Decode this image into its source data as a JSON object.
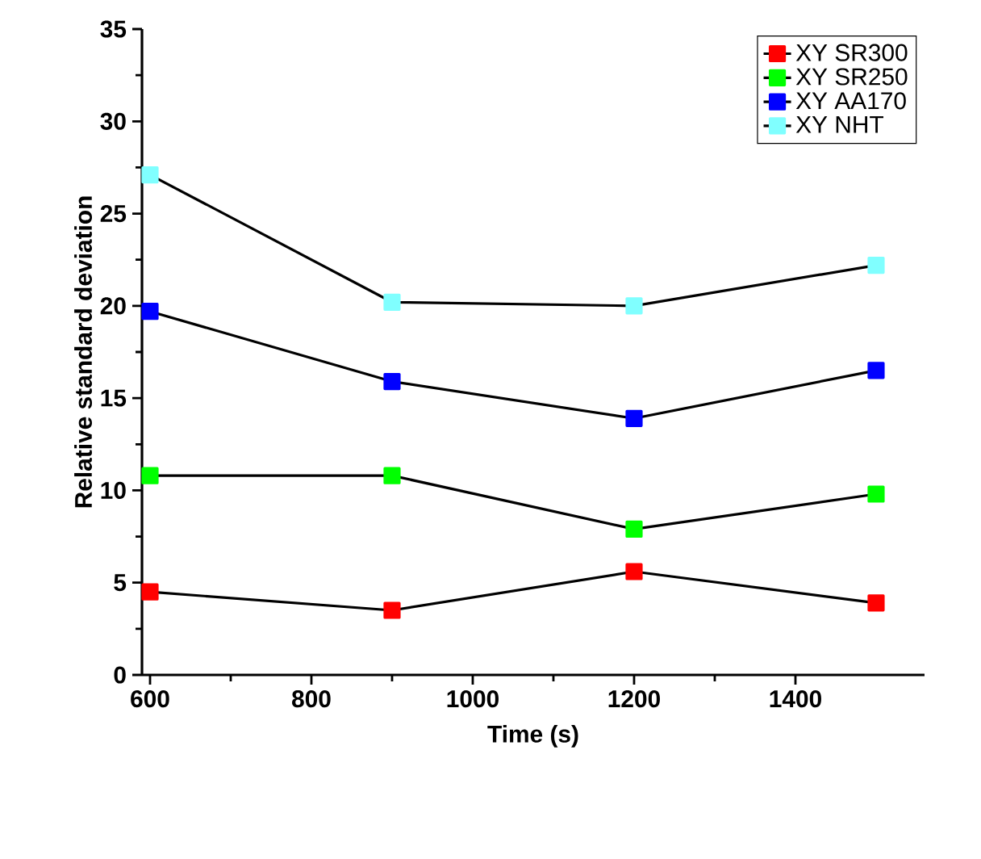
{
  "chart_data": {
    "type": "line",
    "xlabel": "Time (s)",
    "ylabel": "Relative standard deviation",
    "x": [
      600,
      900,
      1200,
      1500
    ],
    "series": [
      {
        "name": "XY SR300",
        "color": "#ff0000",
        "values": [
          4.5,
          3.5,
          5.6,
          3.9
        ]
      },
      {
        "name": "XY SR250",
        "color": "#00ff00",
        "values": [
          10.8,
          10.8,
          7.9,
          9.8
        ]
      },
      {
        "name": "XY AA170",
        "color": "#0000ff",
        "values": [
          19.7,
          15.9,
          13.9,
          16.5
        ]
      },
      {
        "name": "XY NHT",
        "color": "#80ffff",
        "values": [
          27.1,
          20.2,
          20.0,
          22.2
        ]
      }
    ],
    "xlim": [
      590,
      1560
    ],
    "xticks": [
      600,
      800,
      1000,
      1200,
      1400
    ],
    "ylim": [
      0,
      35
    ],
    "yticks": [
      0,
      5,
      10,
      15,
      20,
      25,
      30,
      35
    ],
    "grid": false,
    "legend": "top right",
    "marker": "square",
    "line_style": "solid"
  }
}
